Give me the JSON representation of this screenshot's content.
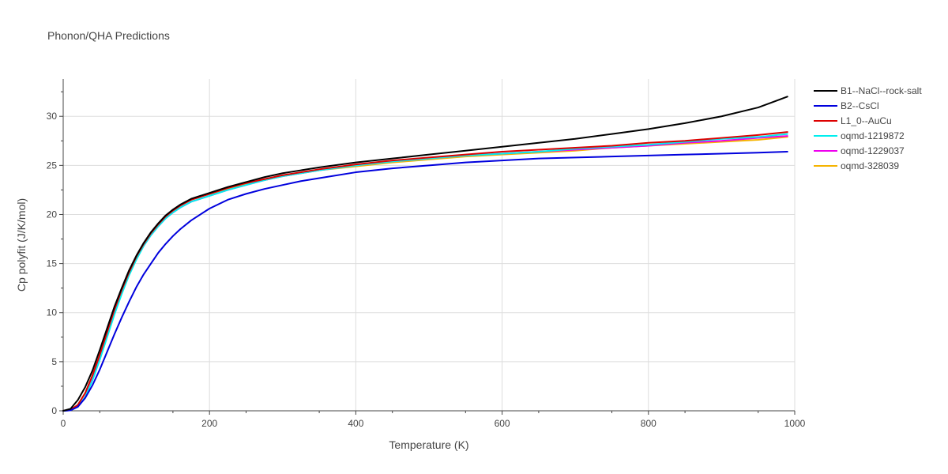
{
  "chart_data": {
    "type": "line",
    "title": "Phonon/QHA Predictions",
    "xlabel": "Temperature (K)",
    "ylabel": "Cp polyfit (J/K/mol)",
    "xlim": [
      0,
      1000
    ],
    "ylim": [
      0,
      33.8
    ],
    "xticks": [
      0,
      200,
      400,
      600,
      800,
      1000
    ],
    "xtick_labels": [
      "0",
      "200",
      "400",
      "600",
      "800",
      "1000"
    ],
    "yticks": [
      0,
      5,
      10,
      15,
      20,
      25,
      30
    ],
    "ytick_labels": [
      "0",
      "5",
      "10",
      "15",
      "20",
      "25",
      "30"
    ],
    "grid": true,
    "legend_position": "right",
    "series": [
      {
        "name": "B1--NaCl--rock-salt",
        "color": "#000000",
        "x": [
          0,
          10,
          20,
          30,
          40,
          50,
          60,
          70,
          80,
          90,
          100,
          110,
          120,
          130,
          140,
          150,
          160,
          175,
          200,
          225,
          250,
          275,
          300,
          325,
          350,
          400,
          450,
          500,
          550,
          600,
          650,
          700,
          750,
          800,
          850,
          900,
          950,
          990
        ],
        "y": [
          0,
          0.2,
          1.1,
          2.4,
          4.1,
          6.2,
          8.4,
          10.6,
          12.5,
          14.3,
          15.8,
          17.1,
          18.2,
          19.1,
          19.9,
          20.5,
          21.0,
          21.6,
          22.2,
          22.8,
          23.3,
          23.8,
          24.2,
          24.5,
          24.8,
          25.3,
          25.7,
          26.1,
          26.5,
          26.9,
          27.3,
          27.7,
          28.2,
          28.7,
          29.3,
          30.0,
          30.9,
          32.0
        ]
      },
      {
        "name": "B2--CsCl",
        "color": "#0000dd",
        "x": [
          0,
          10,
          20,
          30,
          40,
          50,
          60,
          70,
          80,
          90,
          100,
          110,
          120,
          130,
          140,
          150,
          160,
          175,
          200,
          225,
          250,
          275,
          300,
          325,
          350,
          400,
          450,
          500,
          550,
          600,
          650,
          700,
          750,
          800,
          850,
          900,
          950,
          990
        ],
        "y": [
          0,
          0.05,
          0.4,
          1.3,
          2.6,
          4.2,
          6.0,
          7.8,
          9.5,
          11.1,
          12.6,
          13.9,
          15.0,
          16.1,
          17.0,
          17.8,
          18.5,
          19.4,
          20.6,
          21.5,
          22.1,
          22.6,
          23.0,
          23.4,
          23.7,
          24.3,
          24.7,
          25.0,
          25.3,
          25.5,
          25.7,
          25.8,
          25.9,
          26.0,
          26.1,
          26.2,
          26.3,
          26.4
        ]
      },
      {
        "name": "L1_0--AuCu",
        "color": "#dd0000",
        "x": [
          0,
          10,
          20,
          30,
          40,
          50,
          60,
          70,
          80,
          90,
          100,
          110,
          120,
          130,
          140,
          150,
          160,
          175,
          200,
          225,
          250,
          275,
          300,
          325,
          350,
          400,
          450,
          500,
          550,
          600,
          650,
          700,
          750,
          800,
          850,
          900,
          950,
          990
        ],
        "y": [
          0,
          0.1,
          0.6,
          1.8,
          3.6,
          5.7,
          8.0,
          10.3,
          12.3,
          14.1,
          15.7,
          17.0,
          18.1,
          19.0,
          19.8,
          20.4,
          20.9,
          21.5,
          22.1,
          22.7,
          23.2,
          23.6,
          24.0,
          24.3,
          24.6,
          25.1,
          25.5,
          25.8,
          26.1,
          26.4,
          26.6,
          26.8,
          27.0,
          27.3,
          27.5,
          27.8,
          28.1,
          28.4
        ]
      },
      {
        "name": "oqmd-1219872",
        "color": "#00eeee",
        "x": [
          0,
          10,
          20,
          30,
          40,
          50,
          60,
          70,
          80,
          90,
          100,
          110,
          120,
          130,
          140,
          150,
          160,
          175,
          200,
          225,
          250,
          275,
          300,
          325,
          350,
          400,
          450,
          500,
          550,
          600,
          650,
          700,
          750,
          800,
          850,
          900,
          950,
          990
        ],
        "y": [
          0,
          0.05,
          0.4,
          1.4,
          3.1,
          5.2,
          7.5,
          9.8,
          11.9,
          13.8,
          15.4,
          16.8,
          17.9,
          18.8,
          19.6,
          20.2,
          20.7,
          21.3,
          21.9,
          22.5,
          23.0,
          23.5,
          23.9,
          24.2,
          24.5,
          25.0,
          25.4,
          25.7,
          26.0,
          26.2,
          26.4,
          26.7,
          26.9,
          27.1,
          27.4,
          27.7,
          27.9,
          28.2
        ]
      },
      {
        "name": "oqmd-1229037",
        "color": "#ee00ee",
        "x": [
          0,
          10,
          20,
          30,
          40,
          50,
          60,
          70,
          80,
          90,
          100,
          110,
          120,
          130,
          140,
          150,
          160,
          175,
          200,
          225,
          250,
          275,
          300,
          325,
          350,
          400,
          450,
          500,
          550,
          600,
          650,
          700,
          750,
          800,
          850,
          900,
          950,
          990
        ],
        "y": [
          0,
          0.05,
          0.4,
          1.4,
          3.2,
          5.3,
          7.6,
          9.9,
          12.0,
          13.9,
          15.5,
          16.8,
          17.9,
          18.8,
          19.6,
          20.2,
          20.7,
          21.3,
          21.9,
          22.5,
          23.0,
          23.5,
          23.9,
          24.2,
          24.5,
          25.0,
          25.4,
          25.7,
          26.0,
          26.2,
          26.4,
          26.6,
          26.8,
          27.0,
          27.3,
          27.5,
          27.8,
          28.0
        ]
      },
      {
        "name": "oqmd-328039",
        "color": "#f5b400",
        "x": [
          0,
          10,
          20,
          30,
          40,
          50,
          60,
          70,
          80,
          90,
          100,
          110,
          120,
          130,
          140,
          150,
          160,
          175,
          200,
          225,
          250,
          275,
          300,
          325,
          350,
          400,
          450,
          500,
          550,
          600,
          650,
          700,
          750,
          800,
          850,
          900,
          950,
          990
        ],
        "y": [
          0,
          0.1,
          0.6,
          1.8,
          3.6,
          5.7,
          8.0,
          10.3,
          12.3,
          14.1,
          15.7,
          17.0,
          18.1,
          19.0,
          19.8,
          20.4,
          20.9,
          21.5,
          22.1,
          22.6,
          23.1,
          23.5,
          23.9,
          24.2,
          24.5,
          24.9,
          25.3,
          25.6,
          25.9,
          26.1,
          26.3,
          26.5,
          26.8,
          27.0,
          27.2,
          27.4,
          27.6,
          27.9
        ]
      }
    ]
  }
}
